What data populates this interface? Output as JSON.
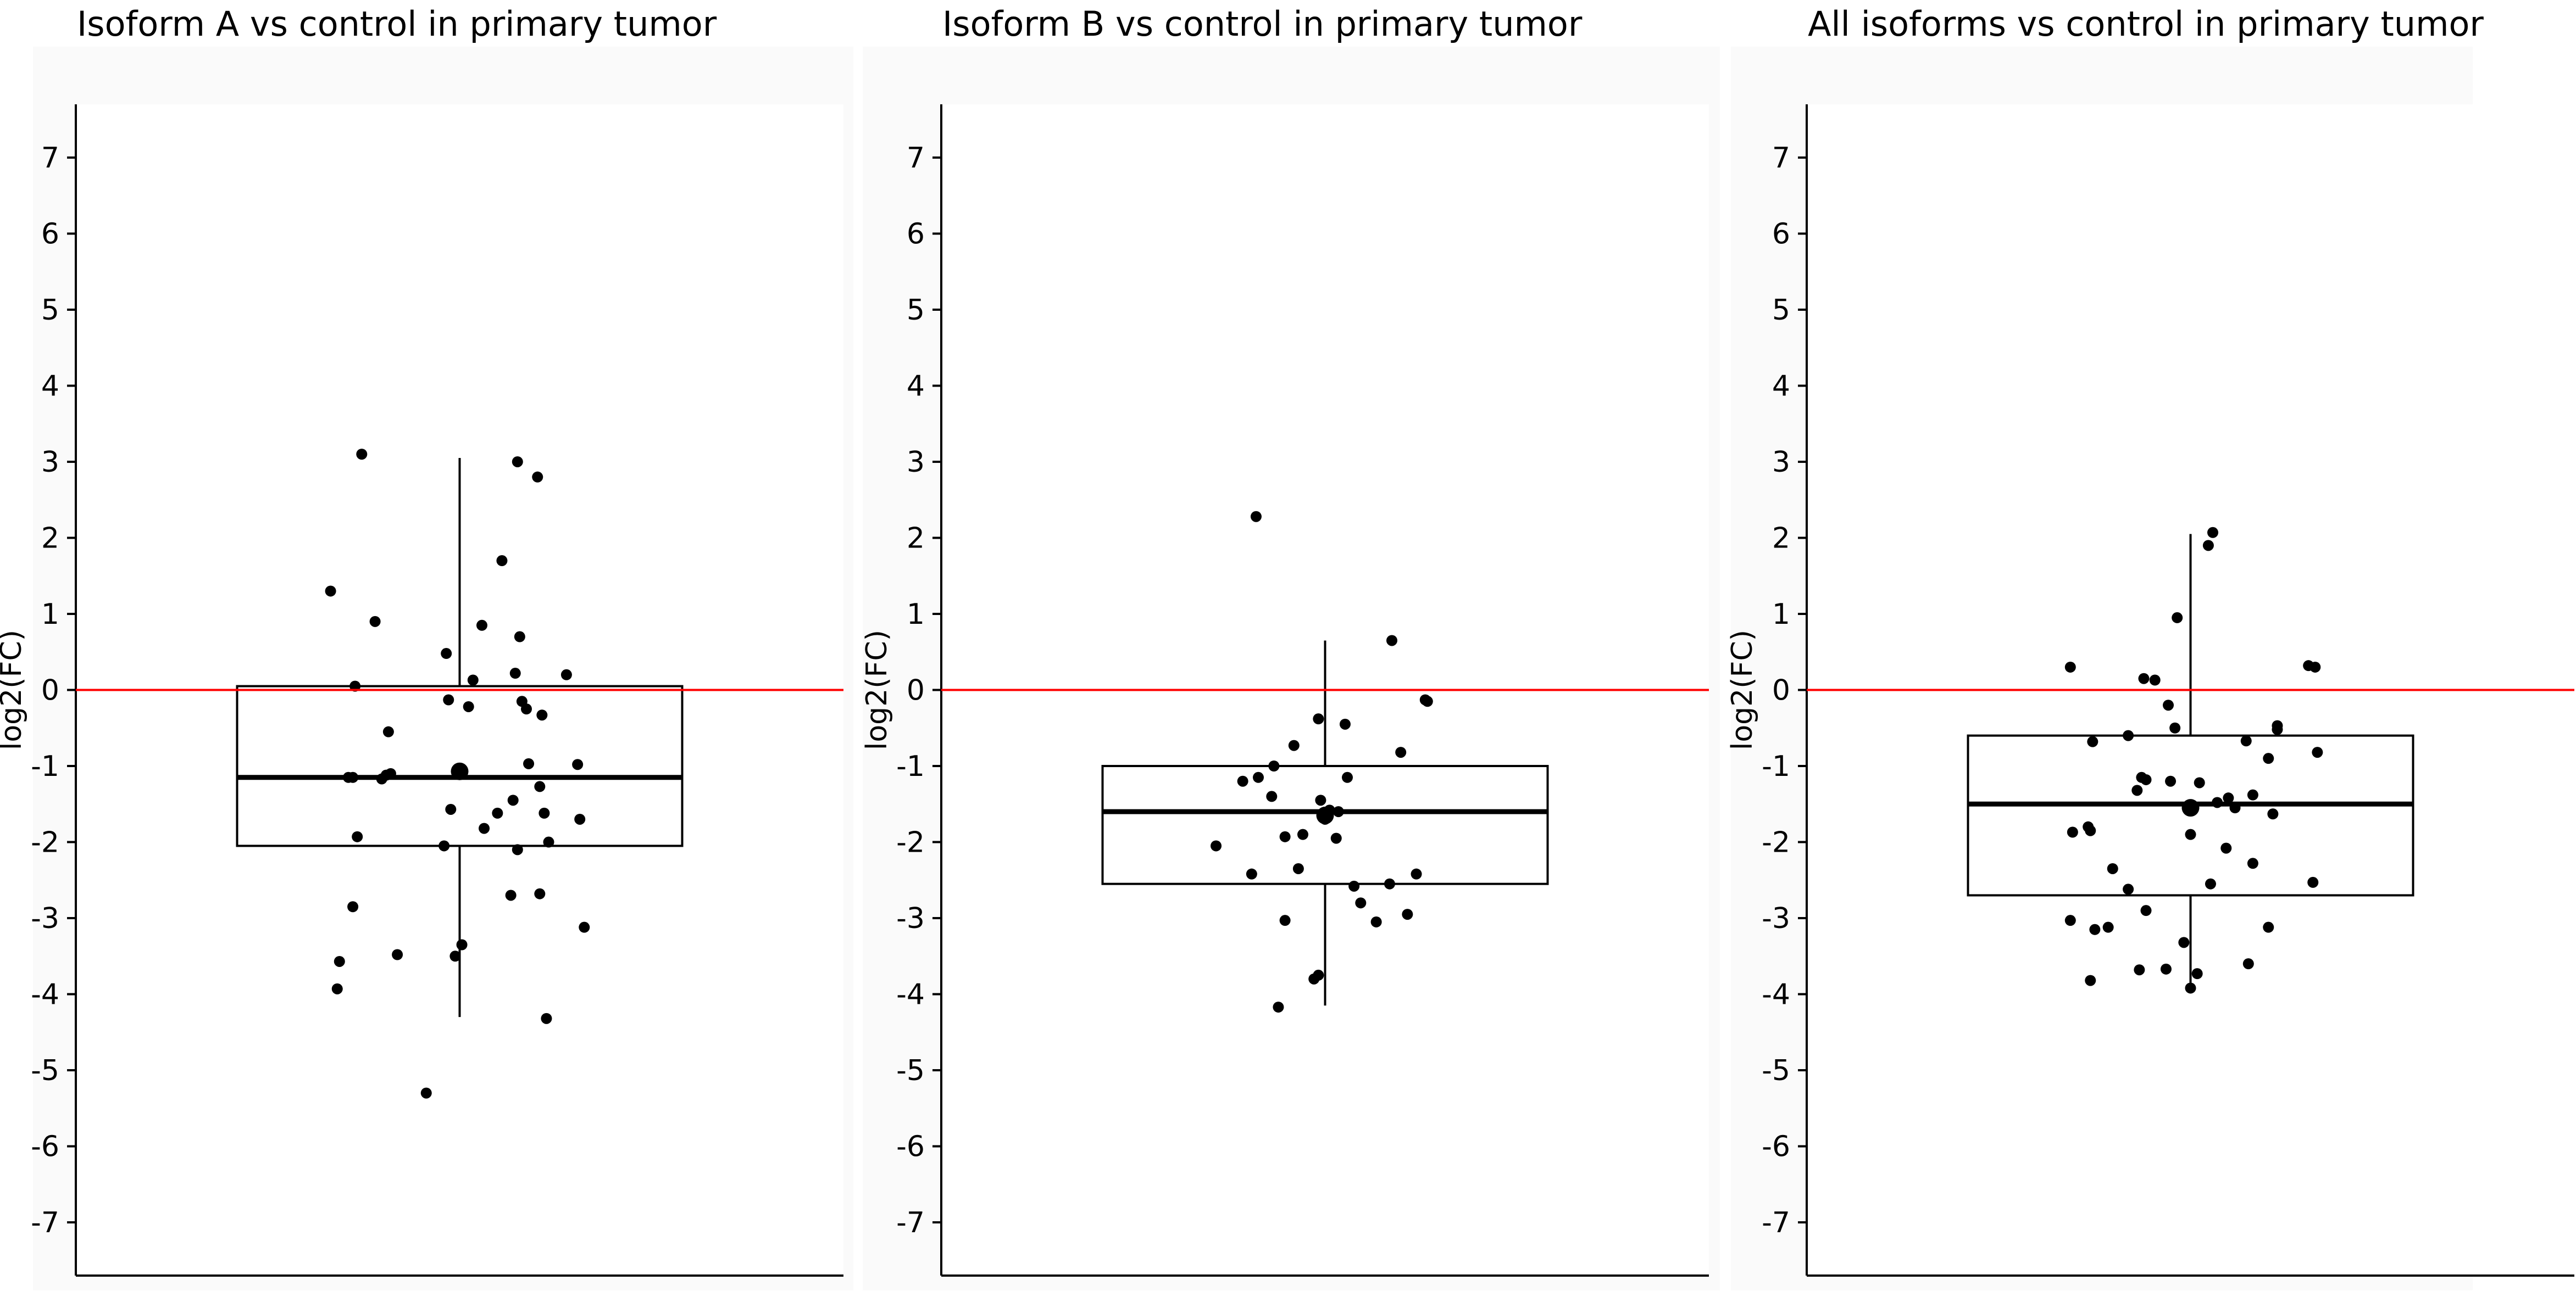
{
  "colors": {
    "points": "#000000",
    "box": "#000000",
    "reference_line": "#ff0000",
    "panel_background": "#fafafa"
  },
  "chart_data": [
    {
      "type": "box",
      "title": "Isoform A vs control in primary tumor",
      "ylabel": "log2(FC)",
      "ylim": [
        -7.7,
        7.7
      ],
      "yticks": [
        7,
        6,
        5,
        4,
        3,
        2,
        1,
        0,
        -1,
        -2,
        -3,
        -4,
        -5,
        -6,
        -7
      ],
      "reference_line_y": 0,
      "box": {
        "q1": -2.05,
        "median": -1.15,
        "q3": 0.05,
        "whisker_low": -4.3,
        "whisker_high": 3.05,
        "mean": -1.07
      },
      "points": [
        {
          "x": -0.44,
          "y": 3.1
        },
        {
          "x": 0.26,
          "y": 3.0
        },
        {
          "x": 0.35,
          "y": 2.8
        },
        {
          "x": 0.19,
          "y": 1.7
        },
        {
          "x": -0.58,
          "y": 1.3
        },
        {
          "x": -0.38,
          "y": 0.9
        },
        {
          "x": 0.1,
          "y": 0.85
        },
        {
          "x": 0.27,
          "y": 0.7
        },
        {
          "x": -0.06,
          "y": 0.48
        },
        {
          "x": 0.25,
          "y": 0.22
        },
        {
          "x": 0.48,
          "y": 0.2
        },
        {
          "x": 0.06,
          "y": 0.13
        },
        {
          "x": -0.47,
          "y": 0.05
        },
        {
          "x": -0.05,
          "y": -0.13
        },
        {
          "x": 0.28,
          "y": -0.15
        },
        {
          "x": 0.04,
          "y": -0.22
        },
        {
          "x": 0.3,
          "y": -0.25
        },
        {
          "x": 0.37,
          "y": -0.33
        },
        {
          "x": -0.32,
          "y": -0.55
        },
        {
          "x": 0.31,
          "y": -0.97
        },
        {
          "x": 0.53,
          "y": -0.98
        },
        {
          "x": -0.48,
          "y": -1.15
        },
        {
          "x": -0.5,
          "y": -1.15
        },
        {
          "x": -0.33,
          "y": -1.12
        },
        {
          "x": -0.31,
          "y": -1.1
        },
        {
          "x": -0.35,
          "y": -1.17
        },
        {
          "x": 0.36,
          "y": -1.27
        },
        {
          "x": 0.24,
          "y": -1.45
        },
        {
          "x": -0.04,
          "y": -1.57
        },
        {
          "x": 0.17,
          "y": -1.62
        },
        {
          "x": 0.38,
          "y": -1.62
        },
        {
          "x": 0.54,
          "y": -1.7
        },
        {
          "x": 0.11,
          "y": -1.82
        },
        {
          "x": -0.46,
          "y": -1.93
        },
        {
          "x": 0.4,
          "y": -2.0
        },
        {
          "x": -0.07,
          "y": -2.05
        },
        {
          "x": 0.26,
          "y": -2.1
        },
        {
          "x": 0.23,
          "y": -2.7
        },
        {
          "x": 0.36,
          "y": -2.68
        },
        {
          "x": -0.48,
          "y": -2.85
        },
        {
          "x": 0.56,
          "y": -3.12
        },
        {
          "x": 0.01,
          "y": -3.35
        },
        {
          "x": -0.28,
          "y": -3.48
        },
        {
          "x": -0.02,
          "y": -3.5
        },
        {
          "x": -0.54,
          "y": -3.57
        },
        {
          "x": -0.55,
          "y": -3.93
        },
        {
          "x": 0.39,
          "y": -4.32
        },
        {
          "x": -0.15,
          "y": -5.3
        }
      ]
    },
    {
      "type": "box",
      "title": "Isoform B vs control in primary tumor",
      "ylabel": "log2(FC)",
      "ylim": [
        -7.7,
        7.7
      ],
      "yticks": [
        7,
        6,
        5,
        4,
        3,
        2,
        1,
        0,
        -1,
        -2,
        -3,
        -4,
        -5,
        -6,
        -7
      ],
      "reference_line_y": 0,
      "box": {
        "q1": -2.55,
        "median": -1.6,
        "q3": -1.0,
        "whisker_low": -4.15,
        "whisker_high": 0.65,
        "mean": -1.65
      },
      "points": [
        {
          "x": -0.31,
          "y": 2.28
        },
        {
          "x": 0.3,
          "y": 0.65
        },
        {
          "x": 0.45,
          "y": -0.13
        },
        {
          "x": 0.46,
          "y": -0.15
        },
        {
          "x": -0.03,
          "y": -0.38
        },
        {
          "x": 0.09,
          "y": -0.45
        },
        {
          "x": -0.14,
          "y": -0.73
        },
        {
          "x": 0.34,
          "y": -0.82
        },
        {
          "x": -0.23,
          "y": -1.0
        },
        {
          "x": -0.3,
          "y": -1.15
        },
        {
          "x": 0.1,
          "y": -1.15
        },
        {
          "x": -0.37,
          "y": -1.2
        },
        {
          "x": -0.24,
          "y": -1.4
        },
        {
          "x": -0.02,
          "y": -1.45
        },
        {
          "x": 0.02,
          "y": -1.58
        },
        {
          "x": 0.06,
          "y": -1.6
        },
        {
          "x": 0.0,
          "y": -1.7
        },
        {
          "x": -0.1,
          "y": -1.9
        },
        {
          "x": -0.18,
          "y": -1.93
        },
        {
          "x": 0.05,
          "y": -1.95
        },
        {
          "x": -0.49,
          "y": -2.05
        },
        {
          "x": -0.12,
          "y": -2.35
        },
        {
          "x": -0.33,
          "y": -2.42
        },
        {
          "x": 0.41,
          "y": -2.42
        },
        {
          "x": 0.29,
          "y": -2.55
        },
        {
          "x": 0.13,
          "y": -2.58
        },
        {
          "x": 0.16,
          "y": -2.8
        },
        {
          "x": 0.37,
          "y": -2.95
        },
        {
          "x": -0.18,
          "y": -3.03
        },
        {
          "x": 0.23,
          "y": -3.05
        },
        {
          "x": -0.03,
          "y": -3.75
        },
        {
          "x": -0.05,
          "y": -3.8
        },
        {
          "x": -0.21,
          "y": -4.17
        }
      ]
    },
    {
      "type": "box",
      "title": "All isoforms vs control in primary tumor",
      "ylabel": "log2(FC)",
      "ylim": [
        -7.7,
        7.7
      ],
      "yticks": [
        7,
        6,
        5,
        4,
        3,
        2,
        1,
        0,
        -1,
        -2,
        -3,
        -4,
        -5,
        -6,
        -7
      ],
      "reference_line_y": 0,
      "box": {
        "q1": -2.7,
        "median": -1.5,
        "q3": -0.6,
        "whisker_low": -3.9,
        "whisker_high": 2.05,
        "mean": -1.55
      },
      "points": [
        {
          "x": 0.1,
          "y": 2.07
        },
        {
          "x": 0.08,
          "y": 1.9
        },
        {
          "x": -0.06,
          "y": 0.95
        },
        {
          "x": -0.54,
          "y": 0.3
        },
        {
          "x": 0.53,
          "y": 0.32
        },
        {
          "x": 0.56,
          "y": 0.3
        },
        {
          "x": -0.21,
          "y": 0.15
        },
        {
          "x": -0.16,
          "y": 0.13
        },
        {
          "x": -0.1,
          "y": -0.2
        },
        {
          "x": 0.39,
          "y": -0.47
        },
        {
          "x": 0.39,
          "y": -0.52
        },
        {
          "x": -0.07,
          "y": -0.5
        },
        {
          "x": -0.28,
          "y": -0.6
        },
        {
          "x": 0.25,
          "y": -0.67
        },
        {
          "x": -0.44,
          "y": -0.68
        },
        {
          "x": 0.57,
          "y": -0.82
        },
        {
          "x": 0.35,
          "y": -0.9
        },
        {
          "x": -0.22,
          "y": -1.15
        },
        {
          "x": -0.2,
          "y": -1.18
        },
        {
          "x": -0.09,
          "y": -1.2
        },
        {
          "x": 0.04,
          "y": -1.22
        },
        {
          "x": -0.24,
          "y": -1.32
        },
        {
          "x": 0.28,
          "y": -1.38
        },
        {
          "x": 0.17,
          "y": -1.42
        },
        {
          "x": 0.12,
          "y": -1.48
        },
        {
          "x": 0.2,
          "y": -1.55
        },
        {
          "x": 0.0,
          "y": -1.55
        },
        {
          "x": 0.37,
          "y": -1.63
        },
        {
          "x": -0.46,
          "y": -1.8
        },
        {
          "x": -0.45,
          "y": -1.85
        },
        {
          "x": -0.53,
          "y": -1.87
        },
        {
          "x": 0.0,
          "y": -1.9
        },
        {
          "x": 0.16,
          "y": -2.08
        },
        {
          "x": 0.28,
          "y": -2.28
        },
        {
          "x": -0.35,
          "y": -2.35
        },
        {
          "x": 0.55,
          "y": -2.53
        },
        {
          "x": -0.28,
          "y": -2.62
        },
        {
          "x": 0.09,
          "y": -2.55
        },
        {
          "x": -0.2,
          "y": -2.9
        },
        {
          "x": -0.54,
          "y": -3.03
        },
        {
          "x": -0.43,
          "y": -3.15
        },
        {
          "x": -0.37,
          "y": -3.12
        },
        {
          "x": 0.35,
          "y": -3.12
        },
        {
          "x": -0.03,
          "y": -3.32
        },
        {
          "x": 0.26,
          "y": -3.6
        },
        {
          "x": -0.23,
          "y": -3.68
        },
        {
          "x": -0.11,
          "y": -3.67
        },
        {
          "x": 0.03,
          "y": -3.73
        },
        {
          "x": -0.45,
          "y": -3.82
        },
        {
          "x": 0.0,
          "y": -3.92
        }
      ]
    }
  ]
}
